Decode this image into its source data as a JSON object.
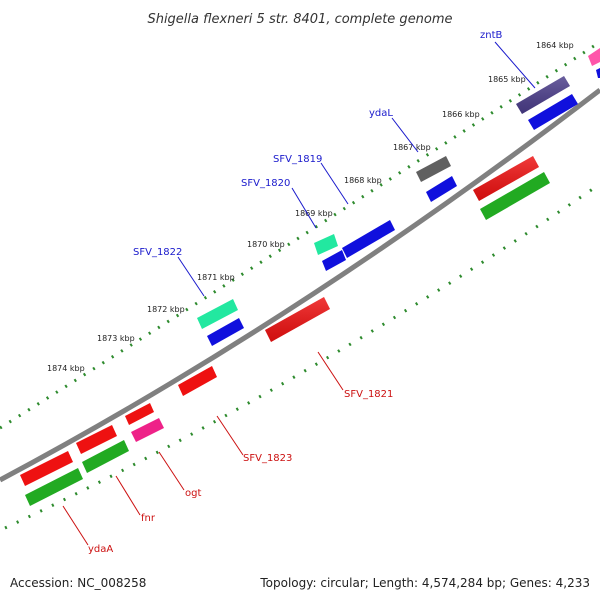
{
  "title": "Shigella flexneri 5 str. 8401, complete genome",
  "footer": {
    "accession": "Accession: NC_008258",
    "topology": "Topology: circular; Length: 4,574,284 bp; Genes: 4,233"
  },
  "colors": {
    "backbone": "#808080",
    "tick_line": "#2e8b2e",
    "top_label": "#1a1acc",
    "bottom_label": "#cc1111",
    "leader_top": "#1a1acc",
    "leader_bottom": "#cc1111"
  },
  "kbp_labels": [
    "1864 kbp",
    "1865 kbp",
    "1866 kbp",
    "1867 kbp",
    "1868 kbp",
    "1869 kbp",
    "1870 kbp",
    "1871 kbp",
    "1872 kbp",
    "1873 kbp",
    "1874 kbp"
  ],
  "gene_labels_top": [
    "zntB",
    "ydaL",
    "SFV_1819",
    "SFV_1820",
    "SFV_1822"
  ],
  "gene_labels_bottom": [
    "SFV_1821",
    "SFV_1823",
    "ogt",
    "fnr",
    "ydaA"
  ]
}
